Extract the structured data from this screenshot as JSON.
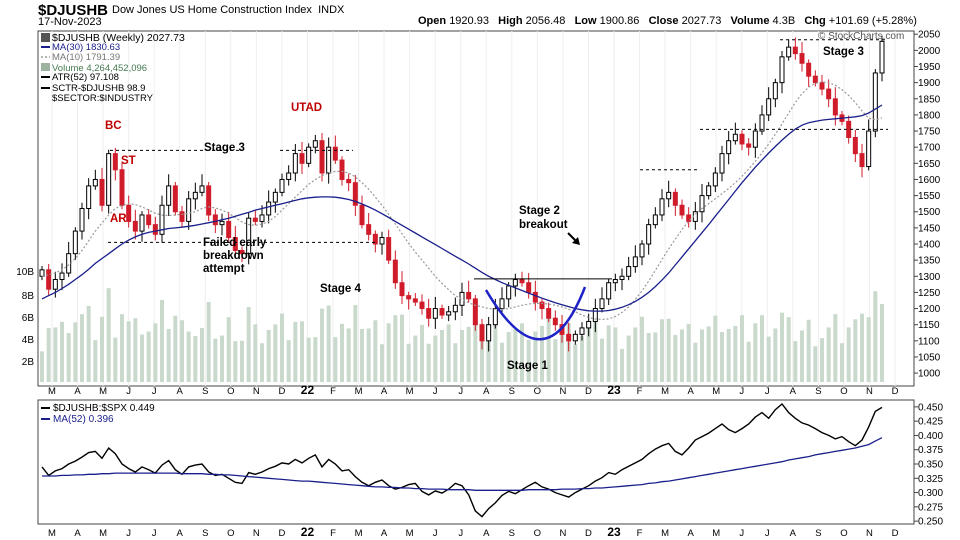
{
  "header": {
    "symbol": "$DJUSHB",
    "name": "Dow Jones US Home Construction Index",
    "exchange": "INDX",
    "date": "17-Nov-2023",
    "open_label": "Open",
    "open": "1920.93",
    "high_label": "High",
    "high": "2056.48",
    "low_label": "Low",
    "low": "1900.86",
    "close_label": "Close",
    "close": "2027.73",
    "volume_label": "Volume",
    "volume": "4.3B",
    "chg_label": "Chg",
    "chg": "+101.69 (+5.28%)",
    "watermark": "© StockCharts.com"
  },
  "legend": {
    "price": "$DJUSHB (Weekly) 2027.73",
    "ma30": "MA(30) 1830.63",
    "ma10": "MA(10) 1791.39",
    "volume": "Volume 4,264,452,096",
    "atr": "ATR(52) 97.108",
    "sctr": "SCTR-$DJUSHB 98.9",
    "sector": "$SECTOR:$INDUSTRY"
  },
  "annotations": {
    "bc": "BC",
    "st": "ST",
    "ar": "AR",
    "utad": "UTAD",
    "stage3_left": "Stage 3",
    "failed": [
      "Failed early",
      "breakdown",
      "attempt"
    ],
    "stage4": "Stage 4",
    "stage2": [
      "Stage 2",
      "breakout"
    ],
    "stage1": "Stage 1",
    "stage3_right": "Stage 3"
  },
  "colors": {
    "up": "#000000",
    "down": "#d01c2a",
    "ma30": "#1a1f8c",
    "ma10": "#999999",
    "volume": "#c9d9cc",
    "label_red": "#c00000",
    "cup": "#1e22c8"
  },
  "chart_data": [
    {
      "type": "candlestick",
      "title": "$DJUSHB (Weekly) 2027.73",
      "x_labels": [
        "M",
        "A",
        "M",
        "J",
        "J",
        "A",
        "S",
        "O",
        "N",
        "D",
        "22",
        "F",
        "M",
        "A",
        "M",
        "J",
        "J",
        "A",
        "S",
        "O",
        "N",
        "D",
        "23",
        "F",
        "M",
        "A",
        "M",
        "J",
        "J",
        "A",
        "S",
        "O",
        "N",
        "D"
      ],
      "y_ticks": [
        1000,
        1050,
        1100,
        1150,
        1200,
        1250,
        1300,
        1350,
        1400,
        1450,
        1500,
        1550,
        1600,
        1650,
        1700,
        1750,
        1800,
        1850,
        1900,
        1950,
        2000,
        2050
      ],
      "ylim": [
        960,
        2060
      ],
      "volume_ticks": [
        "2B",
        "4B",
        "6B",
        "8B",
        "10B"
      ],
      "volume_range": [
        0,
        11
      ],
      "series": [
        {
          "name": "$DJUSHB",
          "close": [
            1320,
            1260,
            1290,
            1310,
            1370,
            1440,
            1510,
            1580,
            1600,
            1520,
            1680,
            1630,
            1520,
            1470,
            1440,
            1490,
            1460,
            1430,
            1520,
            1580,
            1500,
            1470,
            1540,
            1560,
            1580,
            1490,
            1460,
            1470,
            1420,
            1380,
            1370,
            1480,
            1470,
            1490,
            1530,
            1560,
            1600,
            1620,
            1680,
            1650,
            1700,
            1720,
            1620,
            1700,
            1660,
            1600,
            1590,
            1520,
            1460,
            1430,
            1400,
            1420,
            1350,
            1280,
            1240,
            1230,
            1220,
            1200,
            1170,
            1200,
            1180,
            1190,
            1210,
            1250,
            1230,
            1150,
            1100,
            1150,
            1200,
            1230,
            1270,
            1290,
            1280,
            1250,
            1220,
            1200,
            1170,
            1150,
            1120,
            1100,
            1120,
            1140,
            1160,
            1200,
            1230,
            1280,
            1290,
            1300,
            1330,
            1360,
            1400,
            1460,
            1490,
            1540,
            1560,
            1520,
            1490,
            1470,
            1500,
            1550,
            1580,
            1620,
            1680,
            1720,
            1740,
            1710,
            1700,
            1750,
            1800,
            1850,
            1900,
            1980,
            2010,
            1990,
            1960,
            1920,
            1900,
            1880,
            1850,
            1800,
            1780,
            1730,
            1680,
            1640,
            1750,
            1930,
            2028
          ]
        },
        {
          "name": "MA(30)",
          "values": [
            1230,
            1240,
            1250,
            1262,
            1275,
            1290,
            1305,
            1322,
            1340,
            1355,
            1370,
            1385,
            1400,
            1412,
            1422,
            1430,
            1436,
            1440,
            1444,
            1448,
            1450,
            1452,
            1455,
            1458,
            1462,
            1466,
            1470,
            1475,
            1480,
            1486,
            1492,
            1498,
            1505,
            1510,
            1515,
            1520,
            1525,
            1530,
            1535,
            1540,
            1543,
            1545,
            1546,
            1546,
            1545,
            1542,
            1538,
            1532,
            1524,
            1515,
            1505,
            1494,
            1482,
            1470,
            1458,
            1446,
            1434,
            1422,
            1410,
            1398,
            1386,
            1374,
            1362,
            1350,
            1338,
            1325,
            1312,
            1300,
            1290,
            1280,
            1272,
            1264,
            1256,
            1248,
            1240,
            1232,
            1225,
            1218,
            1212,
            1206,
            1200,
            1196,
            1193,
            1192,
            1192,
            1194,
            1198,
            1204,
            1212,
            1222,
            1235,
            1250,
            1268,
            1288,
            1310,
            1335,
            1360,
            1385,
            1410,
            1435,
            1460,
            1486,
            1512,
            1538,
            1564,
            1590,
            1614,
            1638,
            1660,
            1682,
            1702,
            1722,
            1740,
            1756,
            1768,
            1776,
            1780,
            1784,
            1786,
            1788,
            1790,
            1792,
            1794,
            1798,
            1806,
            1818,
            1830.63
          ]
        },
        {
          "name": "MA(10)",
          "values": [
            1300,
            1305,
            1310,
            1320,
            1335,
            1355,
            1380,
            1410,
            1440,
            1465,
            1490,
            1510,
            1520,
            1525,
            1522,
            1515,
            1505,
            1495,
            1490,
            1488,
            1490,
            1492,
            1495,
            1500,
            1510,
            1515,
            1512,
            1505,
            1495,
            1482,
            1468,
            1460,
            1458,
            1462,
            1470,
            1485,
            1505,
            1525,
            1545,
            1565,
            1585,
            1600,
            1612,
            1620,
            1625,
            1625,
            1620,
            1608,
            1590,
            1570,
            1545,
            1520,
            1492,
            1462,
            1432,
            1402,
            1375,
            1350,
            1325,
            1300,
            1278,
            1258,
            1240,
            1228,
            1218,
            1210,
            1205,
            1200,
            1198,
            1198,
            1200,
            1205,
            1210,
            1214,
            1216,
            1216,
            1214,
            1210,
            1205,
            1198,
            1190,
            1180,
            1172,
            1168,
            1166,
            1168,
            1175,
            1188,
            1205,
            1228,
            1255,
            1285,
            1318,
            1352,
            1385,
            1415,
            1445,
            1470,
            1492,
            1510,
            1525,
            1540,
            1556,
            1572,
            1590,
            1610,
            1632,
            1656,
            1682,
            1710,
            1740,
            1772,
            1806,
            1838,
            1866,
            1886,
            1898,
            1902,
            1900,
            1892,
            1878,
            1860,
            1838,
            1812,
            1790,
            1785,
            1791.39
          ]
        }
      ]
    },
    {
      "type": "line",
      "title": "$DJUSHB:$SPX 0.449",
      "x_labels": [
        "M",
        "A",
        "M",
        "J",
        "J",
        "A",
        "S",
        "O",
        "N",
        "D",
        "22",
        "F",
        "M",
        "A",
        "M",
        "J",
        "J",
        "A",
        "S",
        "O",
        "N",
        "D",
        "23",
        "F",
        "M",
        "A",
        "M",
        "J",
        "J",
        "A",
        "S",
        "O",
        "N",
        "D"
      ],
      "y_ticks": [
        0.25,
        0.275,
        0.3,
        0.325,
        0.35,
        0.375,
        0.4,
        0.425,
        0.45
      ],
      "ylim": [
        0.245,
        0.462
      ],
      "series": [
        {
          "name": "$DJUSHB:$SPX",
          "values": [
            0.345,
            0.33,
            0.338,
            0.342,
            0.35,
            0.355,
            0.362,
            0.37,
            0.372,
            0.36,
            0.378,
            0.368,
            0.35,
            0.342,
            0.336,
            0.345,
            0.34,
            0.334,
            0.348,
            0.356,
            0.34,
            0.332,
            0.345,
            0.348,
            0.35,
            0.336,
            0.33,
            0.332,
            0.325,
            0.318,
            0.316,
            0.335,
            0.332,
            0.336,
            0.342,
            0.346,
            0.352,
            0.35,
            0.358,
            0.352,
            0.36,
            0.366,
            0.345,
            0.358,
            0.35,
            0.338,
            0.34,
            0.328,
            0.318,
            0.312,
            0.318,
            0.322,
            0.312,
            0.306,
            0.309,
            0.314,
            0.316,
            0.302,
            0.296,
            0.303,
            0.299,
            0.306,
            0.316,
            0.312,
            0.296,
            0.268,
            0.258,
            0.272,
            0.282,
            0.295,
            0.302,
            0.298,
            0.305,
            0.312,
            0.318,
            0.31,
            0.306,
            0.3,
            0.296,
            0.292,
            0.3,
            0.306,
            0.312,
            0.32,
            0.326,
            0.335,
            0.332,
            0.34,
            0.346,
            0.352,
            0.358,
            0.368,
            0.376,
            0.382,
            0.386,
            0.372,
            0.366,
            0.378,
            0.392,
            0.398,
            0.404,
            0.412,
            0.42,
            0.41,
            0.405,
            0.412,
            0.42,
            0.432,
            0.44,
            0.43,
            0.445,
            0.455,
            0.44,
            0.43,
            0.422,
            0.418,
            0.412,
            0.405,
            0.4,
            0.394,
            0.398,
            0.389,
            0.382,
            0.392,
            0.415,
            0.442,
            0.449
          ]
        },
        {
          "name": "MA(52)",
          "values": [
            0.329,
            0.329,
            0.329,
            0.33,
            0.33,
            0.331,
            0.331,
            0.332,
            0.332,
            0.333,
            0.333,
            0.334,
            0.334,
            0.334,
            0.334,
            0.334,
            0.334,
            0.334,
            0.334,
            0.334,
            0.334,
            0.333,
            0.333,
            0.333,
            0.333,
            0.332,
            0.332,
            0.331,
            0.331,
            0.33,
            0.329,
            0.328,
            0.327,
            0.326,
            0.325,
            0.324,
            0.323,
            0.322,
            0.321,
            0.32,
            0.32,
            0.319,
            0.318,
            0.317,
            0.316,
            0.315,
            0.314,
            0.313,
            0.312,
            0.311,
            0.31,
            0.31,
            0.309,
            0.309,
            0.308,
            0.308,
            0.307,
            0.307,
            0.306,
            0.306,
            0.306,
            0.305,
            0.305,
            0.305,
            0.305,
            0.304,
            0.304,
            0.304,
            0.304,
            0.304,
            0.304,
            0.304,
            0.304,
            0.305,
            0.305,
            0.305,
            0.305,
            0.305,
            0.306,
            0.306,
            0.306,
            0.307,
            0.307,
            0.308,
            0.308,
            0.309,
            0.31,
            0.311,
            0.312,
            0.313,
            0.314,
            0.316,
            0.317,
            0.319,
            0.32,
            0.322,
            0.324,
            0.326,
            0.328,
            0.33,
            0.332,
            0.334,
            0.336,
            0.338,
            0.34,
            0.342,
            0.344,
            0.346,
            0.348,
            0.35,
            0.352,
            0.354,
            0.357,
            0.359,
            0.361,
            0.363,
            0.366,
            0.368,
            0.37,
            0.372,
            0.374,
            0.376,
            0.378,
            0.381,
            0.384,
            0.39,
            0.396
          ]
        }
      ]
    }
  ]
}
